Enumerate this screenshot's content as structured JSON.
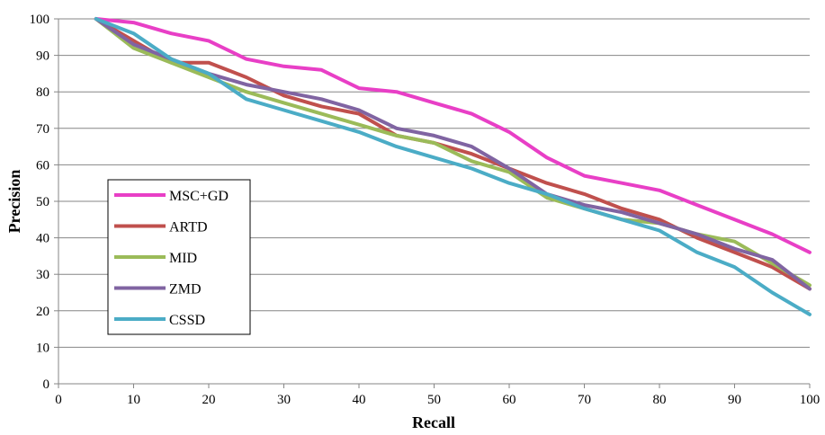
{
  "chart_data": {
    "type": "line",
    "title": "",
    "xlabel": "Recall",
    "ylabel": "Precision",
    "xlim": [
      0,
      100
    ],
    "ylim": [
      0,
      100
    ],
    "x_ticks": [
      0,
      10,
      20,
      30,
      40,
      50,
      60,
      70,
      80,
      90,
      100
    ],
    "y_ticks": [
      0,
      10,
      20,
      30,
      40,
      50,
      60,
      70,
      80,
      90,
      100
    ],
    "grid": "horizontal",
    "legend_position": "left-middle",
    "x": [
      5,
      10,
      15,
      20,
      25,
      30,
      35,
      40,
      45,
      50,
      55,
      60,
      65,
      70,
      75,
      80,
      85,
      90,
      95,
      100
    ],
    "series": [
      {
        "name": "MSC+GD",
        "color": "#e83fc6",
        "values": [
          100,
          99,
          96,
          94,
          89,
          87,
          86,
          81,
          80,
          77,
          74,
          69,
          62,
          57,
          55,
          53,
          49,
          45,
          41,
          36
        ]
      },
      {
        "name": "ARTD",
        "color": "#c0504d",
        "values": [
          100,
          94,
          88,
          88,
          84,
          79,
          76,
          74,
          68,
          66,
          63,
          59,
          55,
          52,
          48,
          45,
          40,
          36,
          32,
          26
        ]
      },
      {
        "name": "MID",
        "color": "#9bbb59",
        "values": [
          100,
          92,
          88,
          84,
          80,
          77,
          74,
          71,
          68,
          66,
          61,
          58,
          51,
          48,
          45,
          44,
          41,
          39,
          33,
          27
        ]
      },
      {
        "name": "ZMD",
        "color": "#8064a2",
        "values": [
          100,
          93,
          89,
          85,
          82,
          80,
          78,
          75,
          70,
          68,
          65,
          59,
          52,
          49,
          47,
          44,
          41,
          37,
          34,
          26
        ]
      },
      {
        "name": "CSSD",
        "color": "#4bacc6",
        "values": [
          100,
          96,
          89,
          85,
          78,
          75,
          72,
          69,
          65,
          62,
          59,
          55,
          52,
          48,
          45,
          42,
          36,
          32,
          25,
          19
        ]
      }
    ]
  }
}
